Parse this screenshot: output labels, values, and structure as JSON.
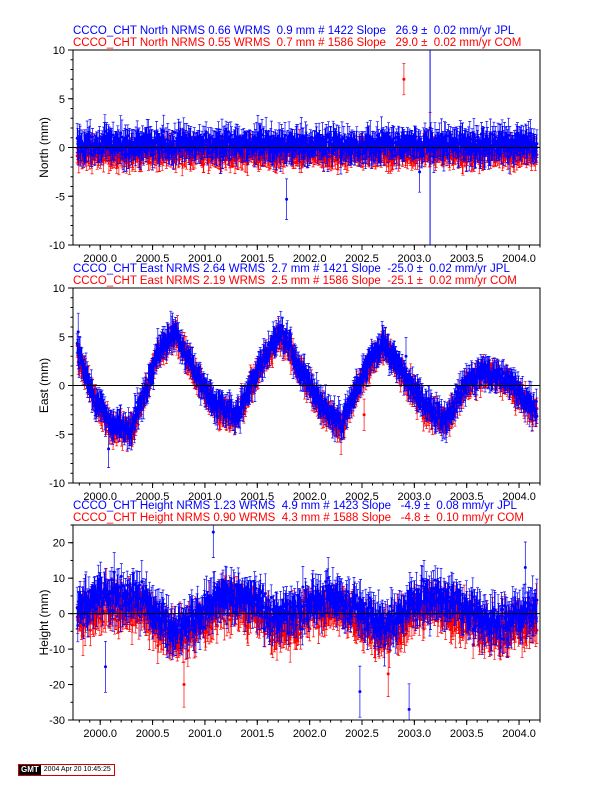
{
  "colors": {
    "jpl": "#0000ff",
    "com": "#ff0000",
    "zero_line": "#000000"
  },
  "chart_data": [
    {
      "type": "scatter",
      "header": {
        "jpl": "CCCO_CHT North NRMS 0.66 WRMS  0.9 mm # 1422 Slope   26.9 ±  0.02 mm/yr JPL",
        "com": "CCCO_CHT North NRMS 0.55 WRMS  0.7 mm # 1586 Slope   29.0 ±  0.02 mm/yr COM"
      },
      "ylabel": "North (mm)",
      "ylim": [
        -10,
        10
      ],
      "yticks": [
        -10,
        -5,
        0,
        5,
        10
      ],
      "xlim": [
        1999.74,
        2004.2
      ],
      "xticks": [
        "2000.0",
        "2000.5",
        "2001.0",
        "2001.5",
        "2002.0",
        "2002.5",
        "2003.0",
        "2003.5",
        "2004.0"
      ],
      "series": [
        {
          "name": "JPL",
          "color": "#0000ff",
          "noise": 0.9,
          "errbar": 1.3,
          "count": 1422,
          "offset": 0.3,
          "seasonal": [],
          "outliers": [
            [
              2001.92,
              1.0
            ],
            [
              2001.78,
              -5.3
            ],
            [
              2003.05,
              -2.5
            ]
          ]
        },
        {
          "name": "COM",
          "color": "#ff0000",
          "noise": 0.8,
          "errbar": 1.0,
          "count": 1586,
          "offset": -0.6,
          "seasonal": [],
          "outliers": [
            [
              2002.9,
              7.0
            ],
            [
              2003.15,
              2.0
            ]
          ]
        }
      ]
    },
    {
      "type": "scatter",
      "header": {
        "jpl": "CCCO_CHT East NRMS 2.64 WRMS  2.7 mm # 1421 Slope  -25.0 ±  0.02 mm/yr JPL",
        "com": "CCCO_CHT East NRMS 2.19 WRMS  2.5 mm # 1586 Slope  -25.1 ±  0.02 mm/yr COM"
      },
      "ylabel": "East (mm)",
      "ylim": [
        -10,
        10
      ],
      "yticks": [
        -10,
        -5,
        0,
        5,
        10
      ],
      "xlim": [
        1999.74,
        2004.2
      ],
      "xticks": [
        "2000.0",
        "2000.5",
        "2001.0",
        "2001.5",
        "2002.0",
        "2002.5",
        "2003.0",
        "2003.5",
        "2004.0"
      ],
      "series": [
        {
          "name": "JPL",
          "color": "#0000ff",
          "noise": 0.8,
          "errbar": 1.2,
          "count": 1421,
          "offset": 0,
          "seasonal": [
            [
              1999.78,
              3.5
            ],
            [
              1999.95,
              -1.5
            ],
            [
              2000.12,
              -4.0
            ],
            [
              2000.3,
              -4.5
            ],
            [
              2000.55,
              3.5
            ],
            [
              2000.72,
              5.5
            ],
            [
              2000.9,
              1.5
            ],
            [
              2001.1,
              -2.0
            ],
            [
              2001.3,
              -3.0
            ],
            [
              2001.55,
              2.5
            ],
            [
              2001.72,
              5.5
            ],
            [
              2001.9,
              2.0
            ],
            [
              2002.1,
              -2.0
            ],
            [
              2002.3,
              -4.0
            ],
            [
              2002.5,
              1.0
            ],
            [
              2002.7,
              4.5
            ],
            [
              2002.9,
              1.0
            ],
            [
              2003.1,
              -2.0
            ],
            [
              2003.3,
              -3.5
            ],
            [
              2003.5,
              0.5
            ],
            [
              2003.7,
              1.5
            ],
            [
              2003.9,
              0.5
            ],
            [
              2004.13,
              -2.5
            ]
          ],
          "outliers": [
            [
              1999.79,
              5.5
            ],
            [
              2000.08,
              -6.5
            ],
            [
              2002.92,
              3.0
            ]
          ]
        },
        {
          "name": "COM",
          "color": "#ff0000",
          "noise": 0.8,
          "errbar": 1.0,
          "count": 1586,
          "offset": -0.3,
          "seasonal": [
            [
              1999.78,
              3.5
            ],
            [
              1999.95,
              -1.5
            ],
            [
              2000.12,
              -4.0
            ],
            [
              2000.3,
              -4.5
            ],
            [
              2000.55,
              3.5
            ],
            [
              2000.72,
              5.5
            ],
            [
              2000.9,
              1.5
            ],
            [
              2001.1,
              -2.0
            ],
            [
              2001.3,
              -3.0
            ],
            [
              2001.55,
              2.5
            ],
            [
              2001.72,
              5.5
            ],
            [
              2001.9,
              2.0
            ],
            [
              2002.1,
              -2.0
            ],
            [
              2002.3,
              -4.0
            ],
            [
              2002.5,
              1.0
            ],
            [
              2002.7,
              4.5
            ],
            [
              2002.9,
              1.0
            ],
            [
              2003.1,
              -2.0
            ],
            [
              2003.3,
              -3.5
            ],
            [
              2003.5,
              0.5
            ],
            [
              2003.7,
              1.5
            ],
            [
              2003.9,
              0.5
            ],
            [
              2004.13,
              -2.5
            ]
          ],
          "outliers": [
            [
              2002.52,
              -3.0
            ],
            [
              2002.3,
              -5.5
            ]
          ]
        }
      ]
    },
    {
      "type": "scatter",
      "header": {
        "jpl": "CCCO_CHT Height NRMS 1.23 WRMS  4.9 mm # 1423 Slope   -4.9 ±  0.08 mm/yr JPL",
        "com": "CCCO_CHT Height NRMS 0.90 WRMS  4.3 mm # 1588 Slope   -4.8 ±  0.10 mm/yr COM"
      },
      "ylabel": "Height (mm)",
      "ylim": [
        -30,
        25
      ],
      "yticks": [
        -30,
        -20,
        -10,
        0,
        10,
        20
      ],
      "xlim": [
        1999.74,
        2004.2
      ],
      "xticks": [
        "2000.0",
        "2000.5",
        "2001.0",
        "2001.5",
        "2002.0",
        "2002.5",
        "2003.0",
        "2003.5",
        "2004.0"
      ],
      "series": [
        {
          "name": "JPL",
          "color": "#0000ff",
          "noise": 4.0,
          "errbar": 4.5,
          "count": 1423,
          "offset": 1.0,
          "seasonal": [
            [
              1999.78,
              0
            ],
            [
              2000.1,
              5
            ],
            [
              2000.4,
              3
            ],
            [
              2000.7,
              -6
            ],
            [
              2001.0,
              0
            ],
            [
              2001.2,
              5
            ],
            [
              2001.5,
              2
            ],
            [
              2001.7,
              -3
            ],
            [
              2002.0,
              2
            ],
            [
              2002.2,
              4
            ],
            [
              2002.5,
              0
            ],
            [
              2002.7,
              -5
            ],
            [
              2003.0,
              2
            ],
            [
              2003.2,
              4
            ],
            [
              2003.5,
              0
            ],
            [
              2003.8,
              -4
            ],
            [
              2004.13,
              0
            ]
          ],
          "outliers": [
            [
              2001.08,
              23
            ],
            [
              2002.48,
              -22
            ],
            [
              2002.95,
              -27
            ],
            [
              2004.06,
              13
            ],
            [
              2000.05,
              -15
            ]
          ]
        },
        {
          "name": "COM",
          "color": "#ff0000",
          "noise": 4.0,
          "errbar": 4.0,
          "count": 1588,
          "offset": -2.0,
          "seasonal": [
            [
              1999.78,
              0
            ],
            [
              2000.1,
              5
            ],
            [
              2000.4,
              3
            ],
            [
              2000.7,
              -6
            ],
            [
              2001.0,
              0
            ],
            [
              2001.2,
              5
            ],
            [
              2001.5,
              2
            ],
            [
              2001.7,
              -3
            ],
            [
              2002.0,
              2
            ],
            [
              2002.2,
              4
            ],
            [
              2002.5,
              0
            ],
            [
              2002.7,
              -5
            ],
            [
              2003.0,
              2
            ],
            [
              2003.2,
              4
            ],
            [
              2003.5,
              0
            ],
            [
              2003.8,
              -4
            ],
            [
              2004.13,
              0
            ]
          ],
          "outliers": [
            [
              2000.8,
              -20
            ],
            [
              2002.75,
              -17
            ]
          ]
        }
      ]
    }
  ],
  "footer": {
    "logo": "GMT",
    "timestamp": "2004 Apr 20 10:45:25"
  }
}
